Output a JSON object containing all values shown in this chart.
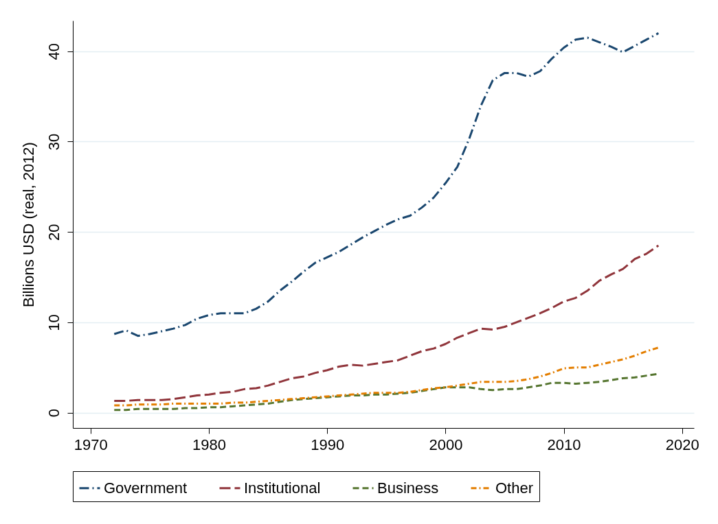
{
  "chart_data": {
    "type": "line",
    "ylabel": "Billions USD (real, 2012)",
    "x": [
      1972,
      1973,
      1974,
      1975,
      1976,
      1977,
      1978,
      1979,
      1980,
      1981,
      1982,
      1983,
      1984,
      1985,
      1986,
      1987,
      1988,
      1989,
      1990,
      1991,
      1992,
      1993,
      1994,
      1995,
      1996,
      1997,
      1998,
      1999,
      2000,
      2001,
      2002,
      2003,
      2004,
      2005,
      2006,
      2007,
      2008,
      2009,
      2010,
      2011,
      2012,
      2013,
      2014,
      2015,
      2016,
      2017,
      2018
    ],
    "series": [
      {
        "name": "Government",
        "color": "#1a476f",
        "values": [
          8.7,
          9.1,
          8.5,
          8.7,
          9.0,
          9.3,
          9.7,
          10.4,
          10.8,
          11.0,
          11.0,
          11.0,
          11.5,
          12.3,
          13.5,
          14.5,
          15.6,
          16.6,
          17.2,
          17.8,
          18.6,
          19.4,
          20.1,
          20.8,
          21.4,
          21.8,
          22.7,
          23.8,
          25.4,
          27.2,
          30.3,
          34.0,
          36.8,
          37.6,
          37.6,
          37.2,
          37.8,
          39.2,
          40.4,
          41.3,
          41.5,
          41.0,
          40.5,
          39.9,
          40.6,
          41.3,
          42.0
        ]
      },
      {
        "name": "Institutional",
        "color": "#90353b",
        "values": [
          1.3,
          1.3,
          1.4,
          1.4,
          1.4,
          1.5,
          1.7,
          1.9,
          2.0,
          2.2,
          2.3,
          2.6,
          2.7,
          3.0,
          3.4,
          3.8,
          4.0,
          4.4,
          4.7,
          5.1,
          5.3,
          5.2,
          5.4,
          5.6,
          5.8,
          6.3,
          6.8,
          7.1,
          7.6,
          8.3,
          8.8,
          9.3,
          9.2,
          9.5,
          10.0,
          10.5,
          11.0,
          11.6,
          12.3,
          12.7,
          13.5,
          14.6,
          15.3,
          15.9,
          17.0,
          17.6,
          18.5
        ]
      },
      {
        "name": "Business",
        "color": "#55752f",
        "values": [
          0.3,
          0.3,
          0.4,
          0.4,
          0.4,
          0.4,
          0.5,
          0.5,
          0.6,
          0.6,
          0.7,
          0.8,
          0.9,
          1.0,
          1.2,
          1.4,
          1.5,
          1.6,
          1.7,
          1.8,
          1.9,
          1.9,
          2.0,
          2.0,
          2.1,
          2.2,
          2.4,
          2.6,
          2.8,
          2.8,
          2.8,
          2.6,
          2.5,
          2.6,
          2.6,
          2.8,
          3.0,
          3.3,
          3.3,
          3.2,
          3.3,
          3.4,
          3.6,
          3.8,
          3.9,
          4.1,
          4.3
        ]
      },
      {
        "name": "Other",
        "color": "#e37e00",
        "values": [
          0.8,
          0.8,
          0.9,
          0.9,
          0.9,
          1.0,
          1.0,
          1.0,
          1.0,
          1.0,
          1.1,
          1.1,
          1.2,
          1.3,
          1.4,
          1.5,
          1.6,
          1.7,
          1.8,
          1.9,
          2.0,
          2.1,
          2.2,
          2.2,
          2.2,
          2.3,
          2.5,
          2.7,
          2.8,
          3.0,
          3.2,
          3.4,
          3.4,
          3.4,
          3.5,
          3.7,
          4.0,
          4.4,
          4.9,
          5.0,
          5.0,
          5.3,
          5.6,
          5.9,
          6.3,
          6.8,
          7.2
        ]
      }
    ],
    "xlim": [
      1968.5,
      2021
    ],
    "xticks": [
      1970,
      1980,
      1990,
      2000,
      2010,
      2020
    ],
    "ylim": [
      -1.7,
      43.4
    ],
    "yticks": [
      0,
      10,
      20,
      30,
      40
    ],
    "grid": "y",
    "legend": "bottom",
    "line_style": "dashed"
  }
}
